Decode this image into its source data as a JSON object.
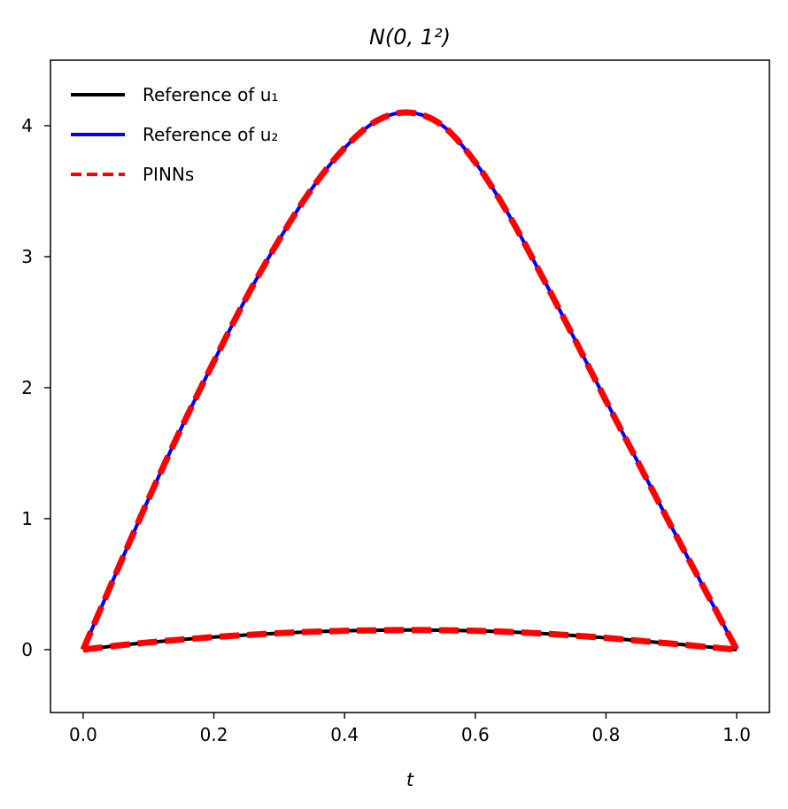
{
  "chart_data": {
    "type": "line",
    "title": "N(0, 1²)",
    "xlabel": "t",
    "ylabel": "",
    "xlim": [
      -0.05,
      1.05
    ],
    "ylim": [
      -0.48,
      4.5
    ],
    "xticks": [
      0.0,
      0.2,
      0.4,
      0.6,
      0.8,
      1.0
    ],
    "xtick_labels": [
      "0.0",
      "0.2",
      "0.4",
      "0.6",
      "0.8",
      "1.0"
    ],
    "yticks": [
      0,
      1,
      2,
      3,
      4
    ],
    "ytick_labels": [
      "0",
      "1",
      "2",
      "3",
      "4"
    ],
    "grid": false,
    "legend_position": "upper-left",
    "series": [
      {
        "name": "Reference of u₁",
        "color": "#000000",
        "style": "solid",
        "x": [
          0.0,
          0.05,
          0.1,
          0.15,
          0.2,
          0.25,
          0.3,
          0.35,
          0.4,
          0.45,
          0.5,
          0.55,
          0.6,
          0.65,
          0.7,
          0.75,
          0.8,
          0.85,
          0.9,
          0.95,
          1.0
        ],
        "y": [
          0.0,
          0.03,
          0.055,
          0.077,
          0.096,
          0.112,
          0.126,
          0.137,
          0.144,
          0.148,
          0.15,
          0.148,
          0.144,
          0.136,
          0.124,
          0.108,
          0.09,
          0.068,
          0.046,
          0.023,
          0.0
        ]
      },
      {
        "name": "Reference of u₂",
        "color": "#0000ff",
        "style": "solid",
        "x": [
          0.0,
          0.05,
          0.1,
          0.15,
          0.2,
          0.25,
          0.3,
          0.35,
          0.4,
          0.45,
          0.5,
          0.55,
          0.6,
          0.65,
          0.7,
          0.75,
          0.8,
          0.85,
          0.9,
          0.95,
          1.0
        ],
        "y": [
          0.0,
          0.58,
          1.15,
          1.69,
          2.2,
          2.69,
          3.13,
          3.52,
          3.83,
          4.04,
          4.1,
          4.0,
          3.72,
          3.33,
          2.87,
          2.39,
          1.9,
          1.42,
          0.94,
          0.47,
          0.0
        ]
      },
      {
        "name": "PINNs",
        "color": "#ff0000",
        "style": "dashed",
        "x": [
          0.0,
          0.05,
          0.1,
          0.15,
          0.2,
          0.25,
          0.3,
          0.35,
          0.4,
          0.45,
          0.5,
          0.55,
          0.6,
          0.65,
          0.7,
          0.75,
          0.8,
          0.85,
          0.9,
          0.95,
          1.0
        ],
        "y": [
          0.0,
          0.58,
          1.15,
          1.69,
          2.2,
          2.69,
          3.13,
          3.52,
          3.83,
          4.04,
          4.1,
          4.0,
          3.72,
          3.33,
          2.87,
          2.39,
          1.9,
          1.42,
          0.94,
          0.47,
          0.0
        ],
        "y2": [
          0.0,
          0.03,
          0.055,
          0.077,
          0.096,
          0.112,
          0.126,
          0.137,
          0.144,
          0.148,
          0.15,
          0.148,
          0.144,
          0.136,
          0.124,
          0.108,
          0.09,
          0.068,
          0.046,
          0.023,
          0.0
        ]
      }
    ]
  }
}
